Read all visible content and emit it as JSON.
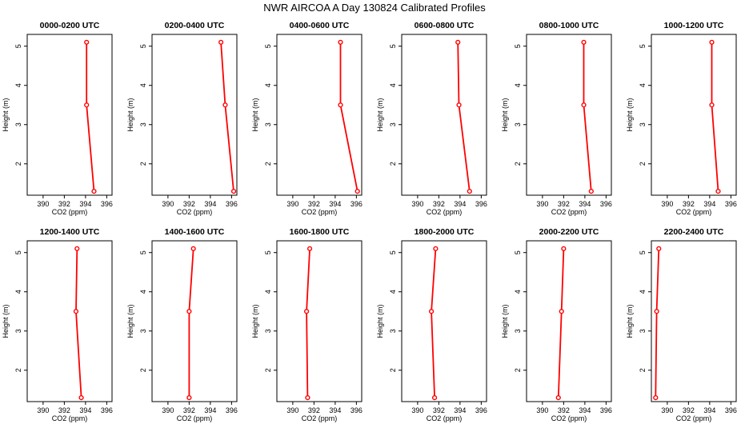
{
  "figure": {
    "title": "NWR AIRCOA A  Day 130824  Calibrated Profiles",
    "series_color": "#ff0000"
  },
  "chart_data": [
    {
      "type": "line",
      "title": "0000-0200 UTC",
      "xlabel": "CO2 (ppm)",
      "ylabel": "Height (m)",
      "xlim": [
        388.5,
        396.5
      ],
      "ylim": [
        1.2,
        5.3
      ],
      "xticks": [
        390,
        392,
        394,
        396
      ],
      "yticks": [
        2,
        3,
        4,
        5
      ],
      "grid": false,
      "points": [
        {
          "x": 394.1,
          "y": 5.1
        },
        {
          "x": 394.1,
          "y": 3.5
        },
        {
          "x": 394.8,
          "y": 1.3
        }
      ]
    },
    {
      "type": "line",
      "title": "0200-0400 UTC",
      "xlabel": "CO2 (ppm)",
      "ylabel": "Height (m)",
      "xlim": [
        388.5,
        396.5
      ],
      "ylim": [
        1.2,
        5.3
      ],
      "xticks": [
        390,
        392,
        394,
        396
      ],
      "yticks": [
        2,
        3,
        4,
        5
      ],
      "grid": false,
      "points": [
        {
          "x": 395.0,
          "y": 5.1
        },
        {
          "x": 395.4,
          "y": 3.5
        },
        {
          "x": 396.2,
          "y": 1.3
        }
      ]
    },
    {
      "type": "line",
      "title": "0400-0600 UTC",
      "xlabel": "CO2 (ppm)",
      "ylabel": "Height (m)",
      "xlim": [
        388.5,
        396.5
      ],
      "ylim": [
        1.2,
        5.3
      ],
      "xticks": [
        390,
        392,
        394,
        396
      ],
      "yticks": [
        2,
        3,
        4,
        5
      ],
      "grid": false,
      "points": [
        {
          "x": 394.5,
          "y": 5.1
        },
        {
          "x": 394.5,
          "y": 3.5
        },
        {
          "x": 396.1,
          "y": 1.3
        }
      ]
    },
    {
      "type": "line",
      "title": "0600-0800 UTC",
      "xlabel": "CO2 (ppm)",
      "ylabel": "Height (m)",
      "xlim": [
        388.5,
        396.5
      ],
      "ylim": [
        1.2,
        5.3
      ],
      "xticks": [
        390,
        392,
        394,
        396
      ],
      "yticks": [
        2,
        3,
        4,
        5
      ],
      "grid": false,
      "points": [
        {
          "x": 393.8,
          "y": 5.1
        },
        {
          "x": 393.9,
          "y": 3.5
        },
        {
          "x": 394.9,
          "y": 1.3
        }
      ]
    },
    {
      "type": "line",
      "title": "0800-1000 UTC",
      "xlabel": "CO2 (ppm)",
      "ylabel": "Height (m)",
      "xlim": [
        388.5,
        396.5
      ],
      "ylim": [
        1.2,
        5.3
      ],
      "xticks": [
        390,
        392,
        394,
        396
      ],
      "yticks": [
        2,
        3,
        4,
        5
      ],
      "grid": false,
      "points": [
        {
          "x": 393.9,
          "y": 5.1
        },
        {
          "x": 393.9,
          "y": 3.5
        },
        {
          "x": 394.6,
          "y": 1.3
        }
      ]
    },
    {
      "type": "line",
      "title": "1000-1200 UTC",
      "xlabel": "CO2 (ppm)",
      "ylabel": "Height (m)",
      "xlim": [
        388.5,
        396.5
      ],
      "ylim": [
        1.2,
        5.3
      ],
      "xticks": [
        390,
        392,
        394,
        396
      ],
      "yticks": [
        2,
        3,
        4,
        5
      ],
      "grid": false,
      "points": [
        {
          "x": 394.2,
          "y": 5.1
        },
        {
          "x": 394.2,
          "y": 3.5
        },
        {
          "x": 394.8,
          "y": 1.3
        }
      ]
    },
    {
      "type": "line",
      "title": "1200-1400 UTC",
      "xlabel": "CO2 (ppm)",
      "ylabel": "Height (m)",
      "xlim": [
        388.5,
        396.5
      ],
      "ylim": [
        1.2,
        5.3
      ],
      "xticks": [
        390,
        392,
        394,
        396
      ],
      "yticks": [
        2,
        3,
        4,
        5
      ],
      "grid": false,
      "points": [
        {
          "x": 393.2,
          "y": 5.1
        },
        {
          "x": 393.1,
          "y": 3.5
        },
        {
          "x": 393.6,
          "y": 1.3
        }
      ]
    },
    {
      "type": "line",
      "title": "1400-1600 UTC",
      "xlabel": "CO2 (ppm)",
      "ylabel": "Height (m)",
      "xlim": [
        388.5,
        396.5
      ],
      "ylim": [
        1.2,
        5.3
      ],
      "xticks": [
        390,
        392,
        394,
        396
      ],
      "yticks": [
        2,
        3,
        4,
        5
      ],
      "grid": false,
      "points": [
        {
          "x": 392.4,
          "y": 5.1
        },
        {
          "x": 392.0,
          "y": 3.5
        },
        {
          "x": 392.0,
          "y": 1.3
        }
      ]
    },
    {
      "type": "line",
      "title": "1600-1800 UTC",
      "xlabel": "CO2 (ppm)",
      "ylabel": "Height (m)",
      "xlim": [
        388.5,
        396.5
      ],
      "ylim": [
        1.2,
        5.3
      ],
      "xticks": [
        390,
        392,
        394,
        396
      ],
      "yticks": [
        2,
        3,
        4,
        5
      ],
      "grid": false,
      "points": [
        {
          "x": 391.6,
          "y": 5.1
        },
        {
          "x": 391.3,
          "y": 3.5
        },
        {
          "x": 391.4,
          "y": 1.3
        }
      ]
    },
    {
      "type": "line",
      "title": "1800-2000 UTC",
      "xlabel": "CO2 (ppm)",
      "ylabel": "Height (m)",
      "xlim": [
        388.5,
        396.5
      ],
      "ylim": [
        1.2,
        5.3
      ],
      "xticks": [
        390,
        392,
        394,
        396
      ],
      "yticks": [
        2,
        3,
        4,
        5
      ],
      "grid": false,
      "points": [
        {
          "x": 391.7,
          "y": 5.1
        },
        {
          "x": 391.3,
          "y": 3.5
        },
        {
          "x": 391.6,
          "y": 1.3
        }
      ]
    },
    {
      "type": "line",
      "title": "2000-2200 UTC",
      "xlabel": "CO2 (ppm)",
      "ylabel": "Height (m)",
      "xlim": [
        388.5,
        396.5
      ],
      "ylim": [
        1.2,
        5.3
      ],
      "xticks": [
        390,
        392,
        394,
        396
      ],
      "yticks": [
        2,
        3,
        4,
        5
      ],
      "grid": false,
      "points": [
        {
          "x": 392.0,
          "y": 5.1
        },
        {
          "x": 391.8,
          "y": 3.5
        },
        {
          "x": 391.5,
          "y": 1.3
        }
      ]
    },
    {
      "type": "line",
      "title": "2200-2400 UTC",
      "xlabel": "CO2 (ppm)",
      "ylabel": "Height (m)",
      "xlim": [
        388.5,
        396.5
      ],
      "ylim": [
        1.2,
        5.3
      ],
      "xticks": [
        390,
        392,
        394,
        396
      ],
      "yticks": [
        2,
        3,
        4,
        5
      ],
      "grid": false,
      "points": [
        {
          "x": 389.2,
          "y": 5.1
        },
        {
          "x": 389.0,
          "y": 3.5
        },
        {
          "x": 388.9,
          "y": 1.3
        }
      ]
    }
  ]
}
